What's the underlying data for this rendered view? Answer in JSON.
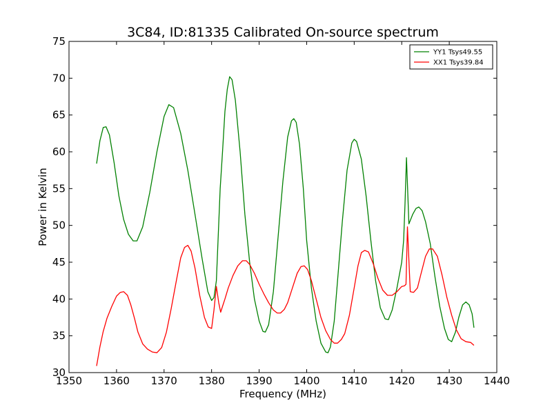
{
  "chart_data": {
    "type": "line",
    "title": "3C84, ID:81335 Calibrated On-source spectrum",
    "xlabel": "Frequency (MHz)",
    "ylabel": "Power in Kelvin",
    "xlim": [
      1350,
      1440
    ],
    "ylim": [
      30,
      75
    ],
    "xticks": [
      1350,
      1360,
      1370,
      1380,
      1390,
      1400,
      1410,
      1420,
      1430,
      1440
    ],
    "yticks": [
      30,
      35,
      40,
      45,
      50,
      55,
      60,
      65,
      70,
      75
    ],
    "grid": false,
    "legend_position": "top-right",
    "series": [
      {
        "name": "YY1 Tsys49.55",
        "color": "#008000",
        "x": [
          1355.8,
          1356.5,
          1357.2,
          1357.8,
          1358.5,
          1359.5,
          1360.5,
          1361.5,
          1362.5,
          1363.5,
          1364.3,
          1365.5,
          1367.0,
          1368.5,
          1370.0,
          1371.0,
          1372.0,
          1373.5,
          1375.0,
          1376.5,
          1378.0,
          1379.2,
          1380.0,
          1380.5,
          1381.0,
          1381.8,
          1382.3,
          1382.8,
          1383.3,
          1383.8,
          1384.3,
          1385.0,
          1386.0,
          1387.0,
          1388.0,
          1389.0,
          1390.0,
          1390.8,
          1391.3,
          1392.0,
          1393.0,
          1394.0,
          1395.0,
          1396.0,
          1396.8,
          1397.3,
          1397.8,
          1398.5,
          1399.3,
          1400.0,
          1401.0,
          1402.0,
          1403.0,
          1404.0,
          1404.5,
          1405.0,
          1405.8,
          1406.5,
          1407.5,
          1408.5,
          1409.5,
          1410.0,
          1410.5,
          1411.5,
          1412.5,
          1413.5,
          1414.5,
          1415.5,
          1416.5,
          1417.2,
          1418.0,
          1419.0,
          1420.0,
          1420.4,
          1420.7,
          1421.0,
          1421.5,
          1422.3,
          1423.0,
          1423.6,
          1424.3,
          1425.0,
          1426.0,
          1427.0,
          1428.0,
          1429.0,
          1429.8,
          1430.5,
          1431.3,
          1432.0,
          1432.8,
          1433.5,
          1434.2,
          1434.8,
          1435.2
        ],
        "values": [
          58.4,
          61.5,
          63.3,
          63.4,
          62.3,
          58.5,
          54.0,
          50.8,
          48.8,
          47.9,
          47.9,
          49.8,
          54.5,
          60.0,
          64.8,
          66.4,
          66.0,
          62.5,
          57.5,
          51.5,
          45.5,
          41.0,
          39.8,
          40.2,
          42.5,
          55.0,
          60.0,
          65.5,
          68.5,
          70.2,
          69.8,
          67.0,
          60.0,
          51.5,
          45.0,
          40.0,
          37.0,
          35.6,
          35.5,
          36.5,
          41.0,
          48.5,
          56.0,
          62.0,
          64.2,
          64.5,
          64.0,
          61.0,
          55.0,
          48.0,
          41.5,
          37.0,
          34.0,
          32.8,
          32.7,
          33.5,
          37.0,
          42.5,
          50.5,
          57.5,
          61.2,
          61.7,
          61.4,
          59.0,
          54.0,
          48.0,
          42.5,
          38.8,
          37.3,
          37.2,
          38.5,
          41.5,
          45.0,
          48.0,
          53.0,
          59.2,
          50.2,
          51.5,
          52.3,
          52.5,
          52.0,
          50.5,
          47.5,
          43.0,
          39.0,
          36.0,
          34.5,
          34.2,
          35.5,
          37.5,
          39.2,
          39.6,
          39.2,
          38.0,
          36.1
        ]
      },
      {
        "name": "XX1 Tsys39.84",
        "color": "#ff0000",
        "x": [
          1355.8,
          1356.5,
          1357.2,
          1358.0,
          1359.0,
          1360.0,
          1360.8,
          1361.5,
          1362.3,
          1363.0,
          1363.8,
          1364.5,
          1365.5,
          1366.5,
          1367.5,
          1368.5,
          1369.5,
          1370.5,
          1371.5,
          1372.5,
          1373.5,
          1374.3,
          1375.0,
          1375.7,
          1376.5,
          1377.5,
          1378.5,
          1379.3,
          1380.0,
          1380.5,
          1381.0,
          1381.5,
          1381.9,
          1382.3,
          1382.8,
          1383.5,
          1384.5,
          1385.5,
          1386.5,
          1387.3,
          1388.0,
          1389.0,
          1390.0,
          1391.0,
          1392.0,
          1393.0,
          1393.8,
          1394.5,
          1395.3,
          1396.0,
          1397.0,
          1398.0,
          1398.8,
          1399.5,
          1400.2,
          1401.0,
          1402.0,
          1403.0,
          1404.0,
          1405.0,
          1405.8,
          1406.5,
          1407.3,
          1408.0,
          1409.0,
          1410.0,
          1410.8,
          1411.5,
          1412.2,
          1413.0,
          1414.0,
          1415.0,
          1416.0,
          1417.0,
          1418.0,
          1419.0,
          1420.0,
          1420.6,
          1420.9,
          1421.2,
          1421.8,
          1422.5,
          1423.3,
          1424.0,
          1425.0,
          1425.8,
          1426.5,
          1427.5,
          1428.5,
          1429.5,
          1430.5,
          1431.5,
          1432.5,
          1433.5,
          1434.5,
          1435.2
        ],
        "values": [
          30.9,
          33.5,
          35.6,
          37.4,
          39.0,
          40.4,
          40.9,
          41.0,
          40.5,
          39.2,
          37.3,
          35.5,
          33.9,
          33.2,
          32.8,
          32.7,
          33.4,
          35.5,
          38.7,
          42.2,
          45.6,
          47.0,
          47.3,
          46.5,
          44.2,
          40.5,
          37.5,
          36.2,
          36.0,
          38.5,
          41.7,
          39.5,
          38.2,
          39.0,
          40.0,
          41.5,
          43.2,
          44.5,
          45.2,
          45.2,
          44.7,
          43.5,
          42.0,
          40.7,
          39.5,
          38.5,
          38.1,
          38.1,
          38.6,
          39.5,
          41.5,
          43.5,
          44.4,
          44.5,
          44.0,
          42.5,
          40.0,
          37.5,
          35.7,
          34.5,
          34.0,
          34.0,
          34.5,
          35.3,
          37.8,
          41.5,
          44.5,
          46.3,
          46.6,
          46.4,
          44.8,
          42.8,
          41.2,
          40.5,
          40.5,
          41.0,
          41.7,
          41.8,
          42.0,
          49.8,
          41.0,
          40.9,
          41.5,
          43.3,
          45.8,
          46.8,
          46.8,
          45.8,
          43.2,
          40.2,
          37.8,
          35.8,
          34.6,
          34.2,
          34.1,
          33.7
        ]
      }
    ]
  }
}
